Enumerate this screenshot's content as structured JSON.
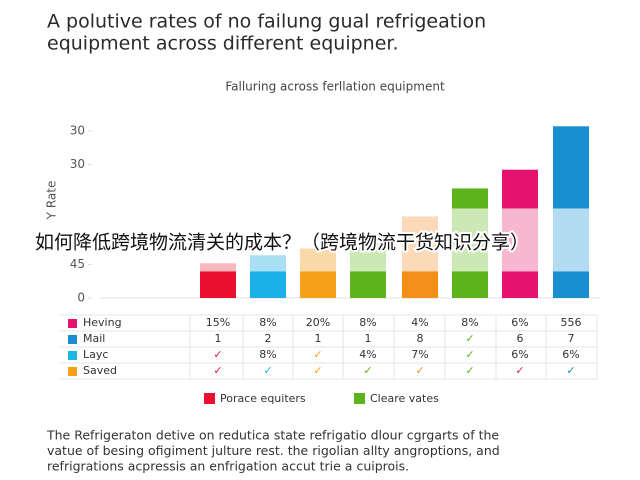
{
  "title_lines": [
    "A polutive rates of no failung gual refrigeation",
    "equipment across different equipner."
  ],
  "chart_data": {
    "type": "bar",
    "stacked": true,
    "title": "Falluring across ferllation equipment",
    "y_label": "Y Rate",
    "ylim": [
      0,
      27
    ],
    "yticks": [
      0,
      {
        "value": 5,
        "label": "45"
      },
      {
        "value": 20,
        "label": "30"
      },
      {
        "value": 25,
        "label": "30"
      }
    ],
    "series": [
      {
        "values": [
          4,
          4,
          4,
          4,
          4,
          4,
          4,
          4
        ],
        "colors": [
          "#e8102e",
          "#1ab0e8",
          "#f6a01a",
          "#5cb31c",
          "#f4901a",
          "#5cb31c",
          "#e3136e",
          "#1a8fd0"
        ]
      },
      {
        "values": [
          1.2,
          2.4,
          3.4,
          4.2,
          8.2,
          9.4,
          9.4,
          9.4
        ],
        "colors": [
          "#f7b8be",
          "#a8dff5",
          "#fad9a8",
          "#cbe8b5",
          "#fcd9b8",
          "#cbe8b5",
          "#f8b7d0",
          "#b3dcf2"
        ]
      },
      {
        "values": [
          null,
          null,
          null,
          null,
          null,
          3,
          5.8,
          12.3
        ],
        "colors": [
          null,
          null,
          null,
          null,
          null,
          "#5cb31c",
          "#e3136e",
          "#1a8fd0"
        ]
      }
    ]
  },
  "overlay": "如何降低跨境物流清关的成本？（跨境物流干货知识分享）",
  "table": {
    "rows": [
      {
        "label": "Heving",
        "color": "#e3136e",
        "cells": [
          "15%",
          "8%",
          "20%",
          "8%",
          "4%",
          "8%",
          "6%",
          "556"
        ]
      },
      {
        "label": "Mail",
        "color": "#1a8fd0",
        "cells": [
          "1",
          "2",
          "1",
          "1",
          "8",
          "✓",
          "6",
          "7"
        ]
      },
      {
        "label": "Layc",
        "color": "#1ab8e0",
        "cells": [
          "✓",
          "8%",
          "✓",
          "4%",
          "7%",
          "✓",
          "6%",
          "6%"
        ]
      },
      {
        "label": "Saved",
        "color": "#f6a01a",
        "cells": [
          "✓",
          "✓",
          "✓",
          "✓",
          "✓",
          "✓",
          "✓",
          "✓"
        ]
      }
    ]
  },
  "legend": [
    {
      "label": "Porace equiters",
      "color": "#e8102e"
    },
    {
      "label": "Cleare vates",
      "color": "#5cb31c"
    }
  ],
  "footer_lines": [
    "The Refrigeraton detive on redutica state refrigatio dlour cgrgarts of the",
    "vatue of besing ofigiment julture rest. the rigolian allty angroptions, and",
    "refrigrations acpressis an enfrigation accut trie a cuiprois."
  ]
}
